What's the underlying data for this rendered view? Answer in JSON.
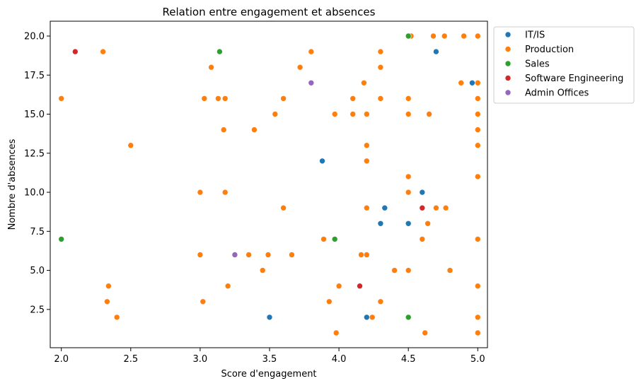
{
  "chart_data": {
    "type": "scatter",
    "title": "Relation entre engagement et absences",
    "xlabel": "Score d'engagement",
    "ylabel": "Nombre d'absences",
    "xlim": [
      1.92,
      5.07
    ],
    "ylim": [
      0.05,
      20.95
    ],
    "xticks": [
      2.0,
      2.5,
      3.0,
      3.5,
      4.0,
      4.5,
      5.0
    ],
    "xtick_labels": [
      "2.0",
      "2.5",
      "3.0",
      "3.5",
      "4.0",
      "4.5",
      "5.0"
    ],
    "yticks": [
      2.5,
      5.0,
      7.5,
      10.0,
      12.5,
      15.0,
      17.5,
      20.0
    ],
    "ytick_labels": [
      "2.5",
      "5.0",
      "7.5",
      "10.0",
      "12.5",
      "15.0",
      "17.5",
      "20.0"
    ],
    "grid": false,
    "legend_position": "outside-right-top",
    "series": [
      {
        "name": "IT/IS",
        "color": "#1f77b4",
        "points": [
          [
            4.7,
            19
          ],
          [
            4.96,
            17
          ],
          [
            3.88,
            12
          ],
          [
            4.6,
            10
          ],
          [
            4.33,
            9
          ],
          [
            4.3,
            8
          ],
          [
            4.5,
            8
          ],
          [
            3.5,
            2
          ],
          [
            4.2,
            2
          ]
        ]
      },
      {
        "name": "Production",
        "color": "#ff7f0e",
        "points": [
          [
            2.3,
            19
          ],
          [
            3.8,
            19
          ],
          [
            4.3,
            19
          ],
          [
            4.52,
            20
          ],
          [
            4.68,
            20
          ],
          [
            4.76,
            20
          ],
          [
            4.9,
            20
          ],
          [
            5.0,
            20
          ],
          [
            3.08,
            18
          ],
          [
            3.72,
            18
          ],
          [
            4.3,
            18
          ],
          [
            4.18,
            17
          ],
          [
            4.88,
            17
          ],
          [
            5.0,
            17
          ],
          [
            2.0,
            16
          ],
          [
            3.03,
            16
          ],
          [
            3.13,
            16
          ],
          [
            3.18,
            16
          ],
          [
            3.6,
            16
          ],
          [
            4.1,
            16
          ],
          [
            4.3,
            16
          ],
          [
            4.5,
            16
          ],
          [
            5.0,
            16
          ],
          [
            3.54,
            15
          ],
          [
            3.97,
            15
          ],
          [
            4.1,
            15
          ],
          [
            4.2,
            15
          ],
          [
            4.5,
            15
          ],
          [
            4.65,
            15
          ],
          [
            5.0,
            15
          ],
          [
            3.17,
            14
          ],
          [
            3.39,
            14
          ],
          [
            5.0,
            14
          ],
          [
            2.5,
            13
          ],
          [
            4.2,
            13
          ],
          [
            5.0,
            13
          ],
          [
            4.2,
            12
          ],
          [
            4.5,
            11
          ],
          [
            5.0,
            11
          ],
          [
            3.0,
            10
          ],
          [
            3.18,
            10
          ],
          [
            4.5,
            10
          ],
          [
            3.6,
            9
          ],
          [
            4.2,
            9
          ],
          [
            4.7,
            9
          ],
          [
            4.77,
            9
          ],
          [
            4.64,
            8
          ],
          [
            3.89,
            7
          ],
          [
            4.6,
            7
          ],
          [
            5.0,
            7
          ],
          [
            3.0,
            6
          ],
          [
            3.35,
            6
          ],
          [
            3.49,
            6
          ],
          [
            3.66,
            6
          ],
          [
            4.16,
            6
          ],
          [
            4.2,
            6
          ],
          [
            3.45,
            5
          ],
          [
            4.4,
            5
          ],
          [
            4.5,
            5
          ],
          [
            4.8,
            5
          ],
          [
            2.34,
            4
          ],
          [
            3.2,
            4
          ],
          [
            4.0,
            4
          ],
          [
            5.0,
            4
          ],
          [
            2.33,
            3
          ],
          [
            3.02,
            3
          ],
          [
            3.93,
            3
          ],
          [
            4.3,
            3
          ],
          [
            2.4,
            2
          ],
          [
            4.24,
            2
          ],
          [
            5.0,
            2
          ],
          [
            3.98,
            1
          ],
          [
            4.62,
            1
          ],
          [
            5.0,
            1
          ]
        ]
      },
      {
        "name": "Sales",
        "color": "#2ca02c",
        "points": [
          [
            3.14,
            19
          ],
          [
            4.5,
            20
          ],
          [
            2.0,
            7
          ],
          [
            3.97,
            7
          ],
          [
            4.5,
            2
          ]
        ]
      },
      {
        "name": "Software Engineering",
        "color": "#d62728",
        "points": [
          [
            2.1,
            19
          ],
          [
            4.6,
            9
          ],
          [
            4.15,
            4
          ]
        ]
      },
      {
        "name": "Admin Offices",
        "color": "#9467bd",
        "points": [
          [
            3.8,
            17
          ],
          [
            3.25,
            6
          ]
        ]
      }
    ]
  }
}
